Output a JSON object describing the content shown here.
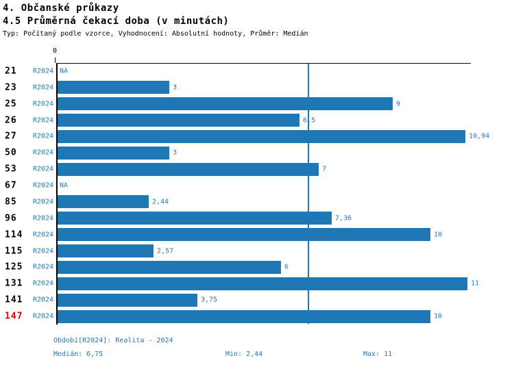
{
  "page_title": "4. Občanské průkazy",
  "chart_data": {
    "type": "bar",
    "orientation": "horizontal",
    "title": "4.5 Průměrná čekací doba (v minutách)",
    "meta": "Typ: Počítaný podle vzorce, Vyhodnocení: Absolutní hodnoty, Průměr: Medián",
    "series_label": "R2024",
    "categories": [
      "21",
      "23",
      "25",
      "26",
      "27",
      "50",
      "53",
      "67",
      "85",
      "96",
      "114",
      "115",
      "125",
      "131",
      "141",
      "147"
    ],
    "values": [
      null,
      3,
      9,
      6.5,
      10.94,
      3,
      7,
      null,
      2.44,
      7.36,
      10,
      2.57,
      6,
      11,
      3.75,
      10
    ],
    "value_labels": [
      "NA",
      "3",
      "9",
      "6,5",
      "10,94",
      "3",
      "7",
      "NA",
      "2,44",
      "7,36",
      "10",
      "2,57",
      "6",
      "11",
      "3,75",
      "10"
    ],
    "na_label": "NA",
    "highlighted_category": "147",
    "xlim": [
      0,
      11.12
    ],
    "zero_tick_label": "0",
    "median_line_value": 6.75,
    "grid": "single-median-line",
    "legend_position": "none",
    "median": 6.75,
    "min": 2.44,
    "max": 11
  },
  "footer": {
    "period": "Období[R2024]: Realita - 2024",
    "median_label": "Medián: 6,75",
    "min_label": "Min: 2,44",
    "max_label": "Max: 11"
  },
  "colors": {
    "bar_blue": "#1f77b4",
    "text_blue": "#1f77b4",
    "highlight_red": "#dd0000",
    "axis_black": "#000000"
  }
}
